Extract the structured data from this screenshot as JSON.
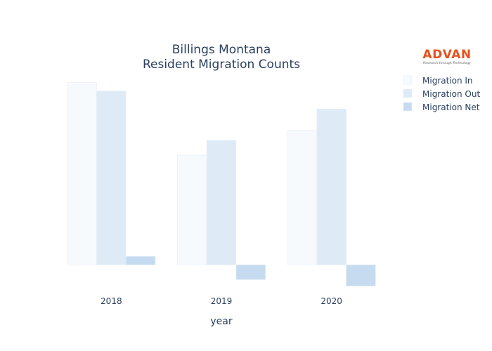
{
  "chart_data": {
    "type": "bar",
    "title_line1": "Billings Montana",
    "title_line2": "Resident Migration Counts",
    "xlabel": "year",
    "ylabel": "",
    "categories": [
      "2018",
      "2019",
      "2020"
    ],
    "series": [
      {
        "name": "Migration In",
        "values": [
          5150,
          3100,
          3800
        ],
        "color": "#f7fafd"
      },
      {
        "name": "Migration Out",
        "values": [
          4910,
          3520,
          4400
        ],
        "color": "#deebf7"
      },
      {
        "name": "Migration Net",
        "values": [
          240,
          -420,
          -600
        ],
        "color": "#c6dbef"
      }
    ],
    "ylim": [
      -650,
      5300
    ],
    "grid": false,
    "legend_position": "top-right"
  },
  "logo": {
    "name": "ADVAN",
    "tagline": "Research through Technology",
    "color": "#e8501e"
  }
}
